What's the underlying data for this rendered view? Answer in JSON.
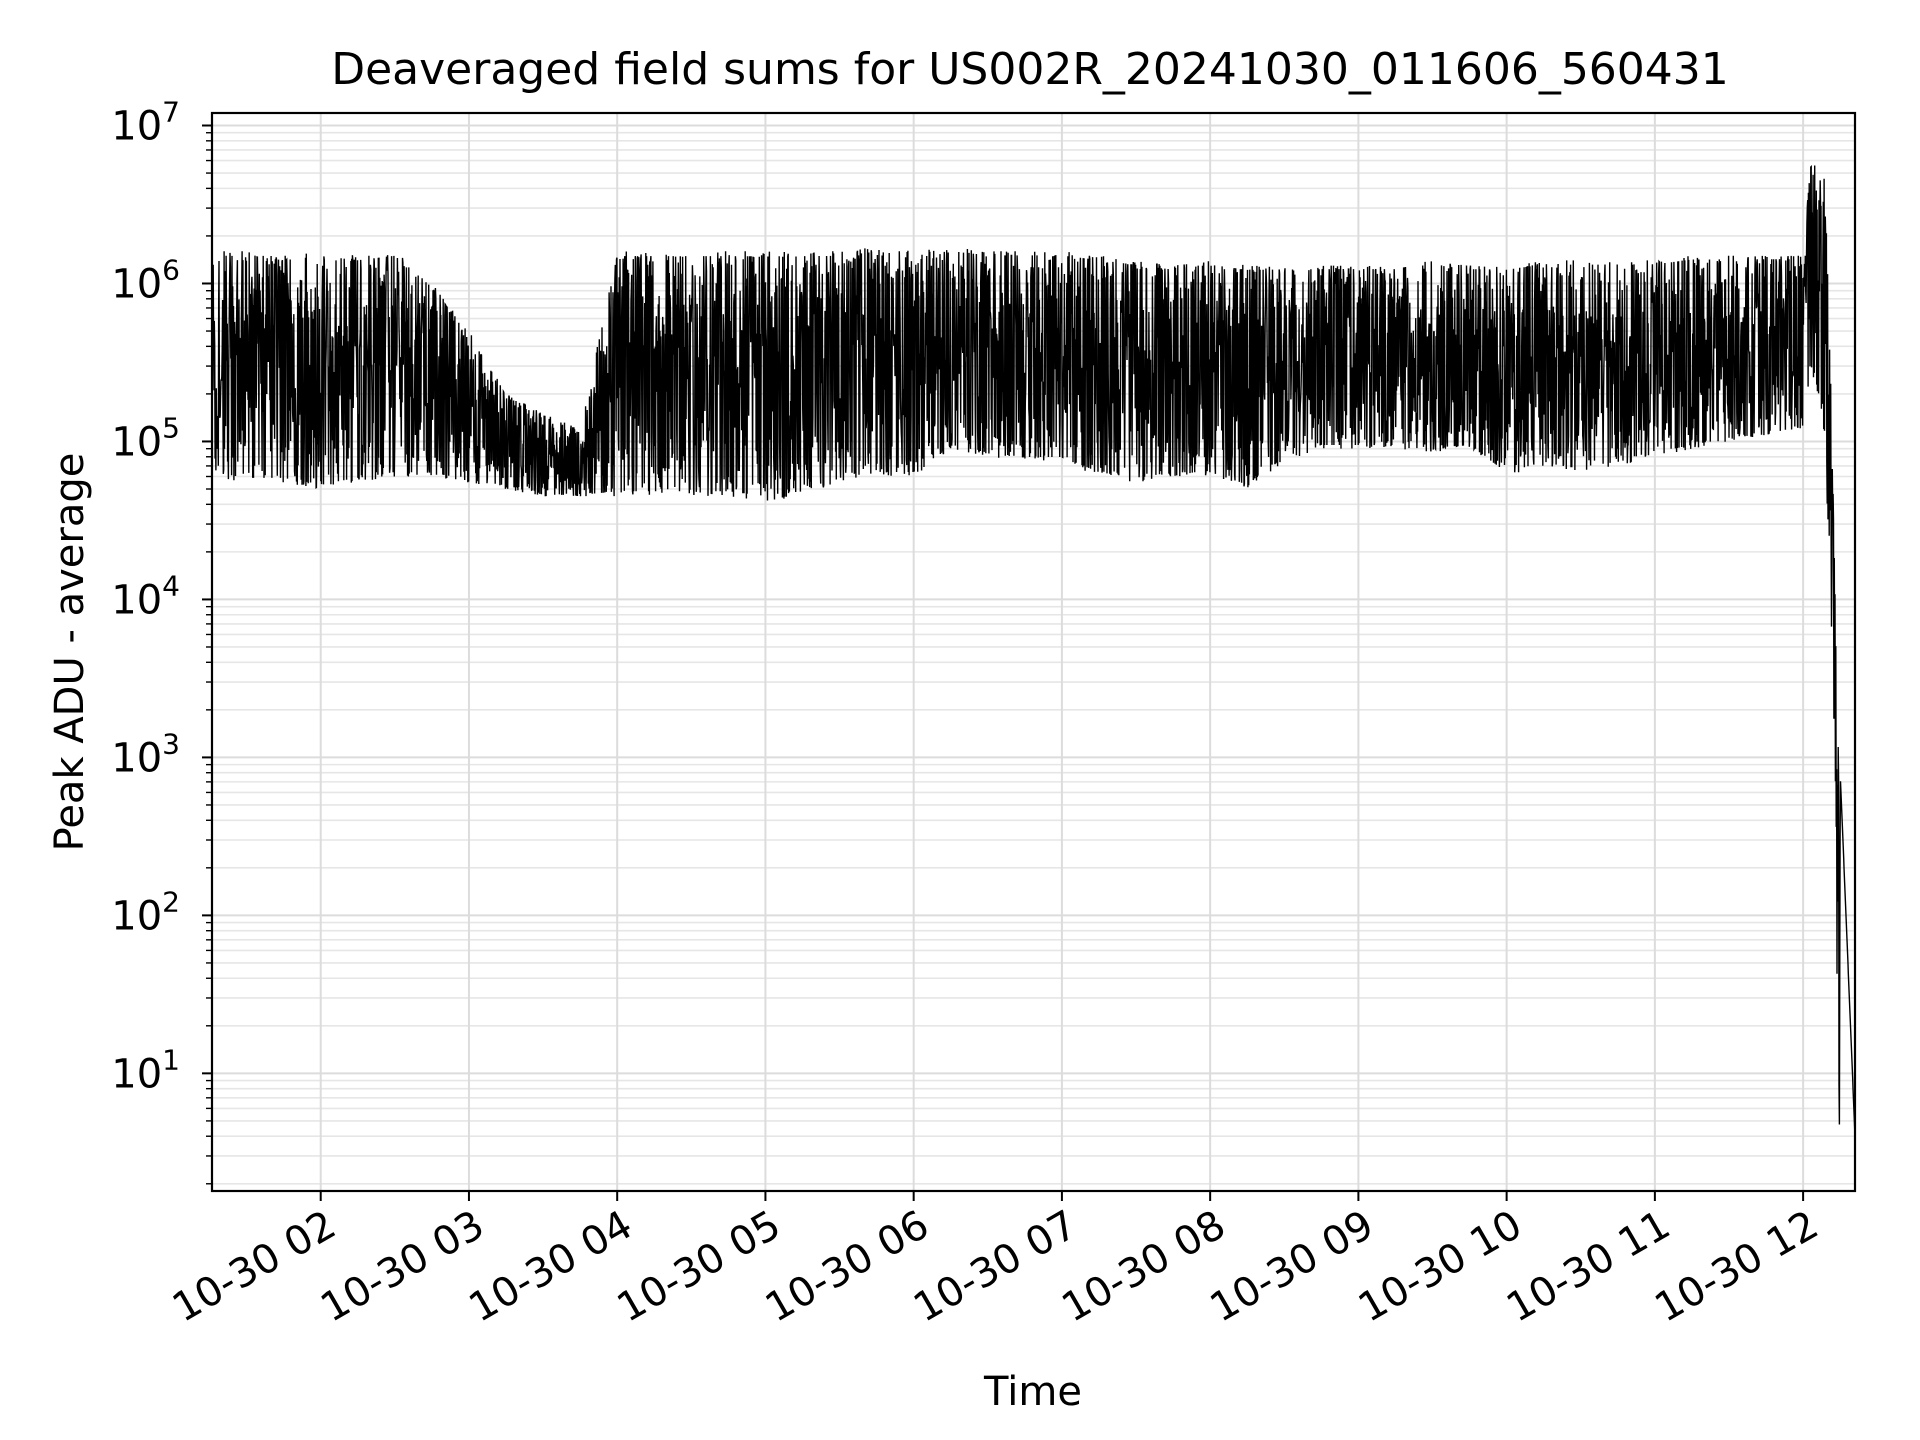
{
  "chart_data": {
    "type": "line",
    "title": "Deaveraged field sums for US002R_20241030_011606_560431",
    "xlabel": "Time",
    "ylabel": "Peak ADU - average",
    "yscale": "log",
    "ylim": [
      1.8,
      12000000
    ],
    "xlim": [
      "2024-10-30 01:16",
      "2024-10-30 12:21"
    ],
    "grid": "both (major and minor), light gray",
    "line_color": "#000000",
    "x_ticks": [
      "2024-10-30 02:00",
      "2024-10-30 03:00",
      "2024-10-30 04:00",
      "2024-10-30 05:00",
      "2024-10-30 06:00",
      "2024-10-30 07:00",
      "2024-10-30 08:00",
      "2024-10-30 09:00",
      "2024-10-30 10:00",
      "2024-10-30 11:00",
      "2024-10-30 12:00"
    ],
    "x_tick_labels": [
      "10-30 02",
      "10-30 03",
      "10-30 04",
      "10-30 05",
      "10-30 06",
      "10-30 07",
      "10-30 08",
      "10-30 09",
      "10-30 10",
      "10-30 11",
      "10-30 12"
    ],
    "y_ticks": [
      10,
      100,
      1000,
      10000,
      100000,
      1000000,
      10000000
    ],
    "y_tick_labels": [
      {
        "base": "10",
        "exp": "1"
      },
      {
        "base": "10",
        "exp": "2"
      },
      {
        "base": "10",
        "exp": "3"
      },
      {
        "base": "10",
        "exp": "4"
      },
      {
        "base": "10",
        "exp": "5"
      },
      {
        "base": "10",
        "exp": "6"
      },
      {
        "base": "10",
        "exp": "7"
      }
    ],
    "series": [
      {
        "x": [
          "2024-10-30 01:16",
          "2024-10-30 01:30",
          "2024-10-30 01:45",
          "2024-10-30 02:00",
          "2024-10-30 02:15",
          "2024-10-30 02:30",
          "2024-10-30 02:45",
          "2024-10-30 03:00",
          "2024-10-30 03:15",
          "2024-10-30 03:30",
          "2024-10-30 03:45",
          "2024-10-30 04:00",
          "2024-10-30 04:15",
          "2024-10-30 04:30",
          "2024-10-30 04:45",
          "2024-10-30 05:00",
          "2024-10-30 05:15",
          "2024-10-30 05:30",
          "2024-10-30 05:45",
          "2024-10-30 06:00",
          "2024-10-30 06:15",
          "2024-10-30 06:30",
          "2024-10-30 06:45",
          "2024-10-30 07:00",
          "2024-10-30 07:15",
          "2024-10-30 07:30",
          "2024-10-30 07:45",
          "2024-10-30 08:00",
          "2024-10-30 08:15",
          "2024-10-30 08:30",
          "2024-10-30 08:45",
          "2024-10-30 09:00",
          "2024-10-30 09:15",
          "2024-10-30 09:30",
          "2024-10-30 09:45",
          "2024-10-30 10:00",
          "2024-10-30 10:15",
          "2024-10-30 10:30",
          "2024-10-30 10:45",
          "2024-10-30 11:00",
          "2024-10-30 11:15",
          "2024-10-30 11:30",
          "2024-10-30 11:45",
          "2024-10-30 12:00",
          "2024-10-30 12:03",
          "2024-10-30 12:06",
          "2024-10-30 12:09",
          "2024-10-30 12:11",
          "2024-10-30 12:12",
          "2024-10-30 12:13",
          "2024-10-30 12:14",
          "2024-10-30 12:15",
          "2024-10-30 12:21"
        ],
        "upper": [
          1600000,
          1600000,
          1500000,
          1600000,
          1500000,
          1600000,
          1000000,
          500000,
          200000,
          150000,
          120000,
          1600000,
          1600000,
          1600000,
          1600000,
          1600000,
          1600000,
          1600000,
          1700000,
          1600000,
          1700000,
          1600000,
          1600000,
          1600000,
          1500000,
          1400000,
          1300000,
          1400000,
          1300000,
          1300000,
          1300000,
          1300000,
          1300000,
          1400000,
          1300000,
          1300000,
          1400000,
          1400000,
          1400000,
          1400000,
          1500000,
          1500000,
          1500000,
          1500000,
          5800000,
          5500000,
          4500000,
          300000,
          100000,
          25000,
          5000,
          800,
          4
        ],
        "lower": [
          60000,
          55000,
          55000,
          50000,
          55000,
          60000,
          60000,
          55000,
          50000,
          45000,
          45000,
          45000,
          45000,
          45000,
          45000,
          42000,
          45000,
          55000,
          60000,
          60000,
          90000,
          80000,
          75000,
          75000,
          60000,
          55000,
          60000,
          60000,
          50000,
          75000,
          90000,
          90000,
          90000,
          85000,
          90000,
          60000,
          70000,
          65000,
          70000,
          80000,
          90000,
          100000,
          110000,
          120000,
          300000,
          200000,
          100000,
          8000,
          3000,
          800,
          4,
          4,
          4
        ]
      }
    ]
  }
}
